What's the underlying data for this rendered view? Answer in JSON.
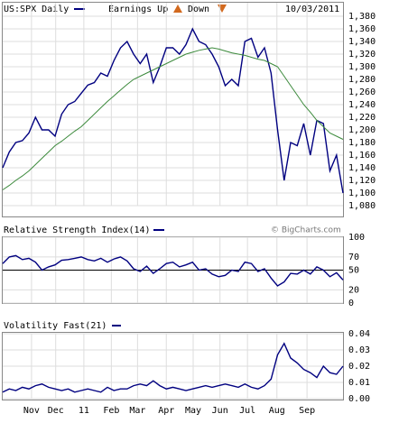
{
  "chart_data": [
    {
      "type": "line",
      "title": "US:SPX Daily",
      "annotations": [
        "Earnings Up",
        "Down",
        "10/03/2011"
      ],
      "xlim": [
        0,
        52
      ],
      "ylim": [
        1080,
        1380
      ],
      "yticks": [
        {
          "value": 1080,
          "label": "1,080"
        },
        {
          "value": 1100,
          "label": "1,100"
        },
        {
          "value": 1120,
          "label": "1,120"
        },
        {
          "value": 1140,
          "label": "1,140"
        },
        {
          "value": 1160,
          "label": "1,160"
        },
        {
          "value": 1180,
          "label": "1,180"
        },
        {
          "value": 1200,
          "label": "1,200"
        },
        {
          "value": 1220,
          "label": "1,220"
        },
        {
          "value": 1240,
          "label": "1,240"
        },
        {
          "value": 1260,
          "label": "1,260"
        },
        {
          "value": 1280,
          "label": "1,280"
        },
        {
          "value": 1300,
          "label": "1,300"
        },
        {
          "value": 1320,
          "label": "1,320"
        },
        {
          "value": 1340,
          "label": "1,340"
        },
        {
          "value": 1360,
          "label": "1,360"
        },
        {
          "value": 1380,
          "label": "1,380"
        }
      ],
      "grid": true,
      "series": [
        {
          "color": "#000080",
          "values": [
            1140,
            1165,
            1180,
            1183,
            1195,
            1220,
            1200,
            1200,
            1190,
            1225,
            1240,
            1245,
            1258,
            1271,
            1275,
            1290,
            1285,
            1310,
            1330,
            1340,
            1320,
            1305,
            1320,
            1275,
            1300,
            1330,
            1330,
            1320,
            1335,
            1360,
            1340,
            1335,
            1320,
            1300,
            1270,
            1280,
            1270,
            1340,
            1345,
            1315,
            1330,
            1290,
            1200,
            1120,
            1180,
            1175,
            1210,
            1160,
            1215,
            1210,
            1135,
            1160,
            1100
          ]
        },
        {
          "color": "#3c8a3c",
          "values": [
            1105,
            1112,
            1120,
            1127,
            1135,
            1145,
            1155,
            1165,
            1175,
            1182,
            1190,
            1198,
            1205,
            1215,
            1225,
            1235,
            1245,
            1254,
            1263,
            1272,
            1280,
            1285,
            1290,
            1295,
            1300,
            1305,
            1310,
            1315,
            1320,
            1323,
            1326,
            1328,
            1330,
            1328,
            1325,
            1322,
            1320,
            1318,
            1315,
            1312,
            1310,
            1305,
            1300,
            1285,
            1270,
            1255,
            1240,
            1228,
            1215,
            1205,
            1195,
            1190,
            1185
          ]
        }
      ]
    },
    {
      "type": "line",
      "title": "Relative Strength Index(14)",
      "annotations": [
        "© BigCharts.com"
      ],
      "xlim": [
        0,
        52
      ],
      "ylim": [
        0,
        100
      ],
      "yticks": [
        0,
        20,
        50,
        70,
        100
      ],
      "grid": true,
      "hline": 50,
      "series": [
        {
          "color": "#000080",
          "values": [
            60,
            70,
            72,
            66,
            68,
            62,
            50,
            55,
            58,
            65,
            66,
            68,
            70,
            66,
            64,
            68,
            62,
            67,
            70,
            64,
            52,
            48,
            56,
            45,
            52,
            60,
            62,
            55,
            58,
            62,
            50,
            52,
            44,
            40,
            42,
            50,
            48,
            62,
            60,
            48,
            52,
            38,
            26,
            32,
            45,
            44,
            50,
            44,
            55,
            50,
            40,
            46,
            35
          ]
        }
      ]
    },
    {
      "type": "line",
      "title": "Volatility Fast(21)",
      "xlim": [
        0,
        52
      ],
      "ylim": [
        0,
        0.04
      ],
      "yticks": [
        {
          "value": 0,
          "label": "0.00"
        },
        0.01,
        0.02,
        0.03,
        0.04
      ],
      "grid": true,
      "xticks": [
        {
          "value": 4.4,
          "label": "Nov"
        },
        {
          "value": 8.1,
          "label": "Dec"
        },
        {
          "value": 12.4,
          "label": "11"
        },
        {
          "value": 16.6,
          "label": "Feb"
        },
        {
          "value": 20.6,
          "label": "Mar"
        },
        {
          "value": 25,
          "label": "Apr"
        },
        {
          "value": 29.1,
          "label": "May"
        },
        {
          "value": 33.2,
          "label": "Jun"
        },
        {
          "value": 37.4,
          "label": "Jul"
        },
        {
          "value": 41.9,
          "label": "Aug"
        },
        {
          "value": 46.5,
          "label": "Sep"
        }
      ],
      "series": [
        {
          "color": "#000080",
          "values": [
            0.004,
            0.006,
            0.005,
            0.007,
            0.006,
            0.008,
            0.009,
            0.007,
            0.006,
            0.005,
            0.006,
            0.004,
            0.005,
            0.006,
            0.005,
            0.004,
            0.007,
            0.005,
            0.006,
            0.006,
            0.008,
            0.009,
            0.008,
            0.011,
            0.008,
            0.006,
            0.007,
            0.006,
            0.005,
            0.006,
            0.007,
            0.008,
            0.007,
            0.008,
            0.009,
            0.008,
            0.007,
            0.009,
            0.007,
            0.006,
            0.008,
            0.012,
            0.027,
            0.034,
            0.025,
            0.022,
            0.018,
            0.016,
            0.013,
            0.02,
            0.016,
            0.015,
            0.02
          ]
        }
      ]
    }
  ]
}
